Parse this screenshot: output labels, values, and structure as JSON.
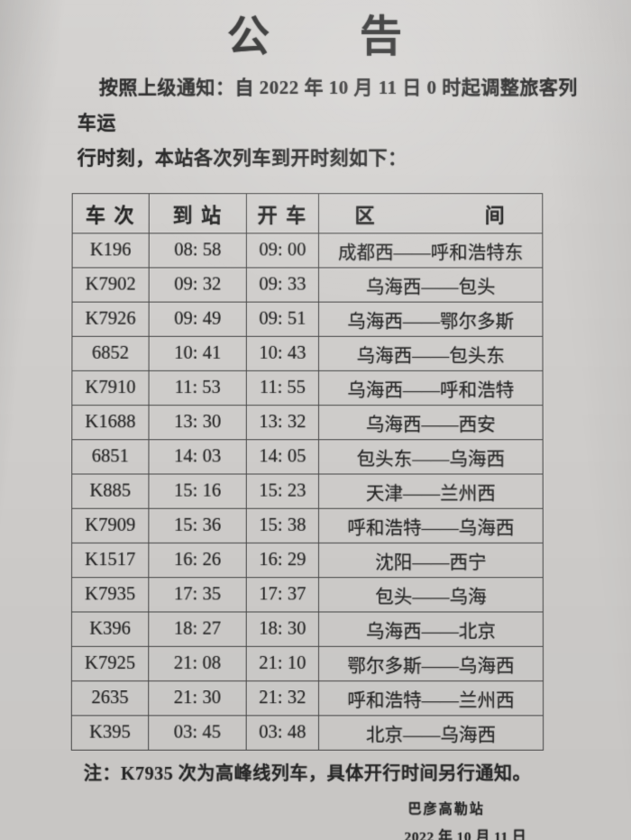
{
  "notice": {
    "title": "公　　告",
    "intro_line1": "按照上级通知：自 2022 年 10 月 11 日 0 时起调整旅客列车运",
    "intro_line2": "行时刻，本站各次列车到开时刻如下：",
    "note": "注：K7935 次为高峰线列车，具体开行时间另行通知。",
    "signature": "巴彦高勒站",
    "date": "2022 年 10 月 11 日"
  },
  "table": {
    "headers": [
      "车 次",
      "到 站",
      "开 车",
      "区　　　　　间"
    ],
    "rows": [
      {
        "train_no": "K196",
        "arrival": "08: 58",
        "departure": "09: 00",
        "section": "成都西——呼和浩特东"
      },
      {
        "train_no": "K7902",
        "arrival": "09: 32",
        "departure": "09: 33",
        "section": "乌海西——包头"
      },
      {
        "train_no": "K7926",
        "arrival": "09: 49",
        "departure": "09: 51",
        "section": "乌海西——鄂尔多斯"
      },
      {
        "train_no": "6852",
        "arrival": "10: 41",
        "departure": "10: 43",
        "section": "乌海西——包头东"
      },
      {
        "train_no": "K7910",
        "arrival": "11: 53",
        "departure": "11: 55",
        "section": "乌海西——呼和浩特"
      },
      {
        "train_no": "K1688",
        "arrival": "13: 30",
        "departure": "13: 32",
        "section": "乌海西——西安"
      },
      {
        "train_no": "6851",
        "arrival": "14: 03",
        "departure": "14: 05",
        "section": "包头东——乌海西"
      },
      {
        "train_no": "K885",
        "arrival": "15: 16",
        "departure": "15: 23",
        "section": "天津——兰州西"
      },
      {
        "train_no": "K7909",
        "arrival": "15: 36",
        "departure": "15: 38",
        "section": "呼和浩特——乌海西"
      },
      {
        "train_no": "K1517",
        "arrival": "16: 26",
        "departure": "16: 29",
        "section": "沈阳——西宁"
      },
      {
        "train_no": "K7935",
        "arrival": "17: 35",
        "departure": "17: 37",
        "section": "包头——乌海"
      },
      {
        "train_no": "K396",
        "arrival": "18: 27",
        "departure": "18: 30",
        "section": "乌海西——北京"
      },
      {
        "train_no": "K7925",
        "arrival": "21: 08",
        "departure": "21: 10",
        "section": "鄂尔多斯——乌海西"
      },
      {
        "train_no": "2635",
        "arrival": "21: 30",
        "departure": "21: 32",
        "section": "呼和浩特——兰州西"
      },
      {
        "train_no": "K395",
        "arrival": "03: 45",
        "departure": "03: 48",
        "section": "北京——乌海西"
      }
    ]
  },
  "colors": {
    "paper": "#d3d1cf",
    "ink": "#282828",
    "table_line": "#4a4a4a"
  }
}
